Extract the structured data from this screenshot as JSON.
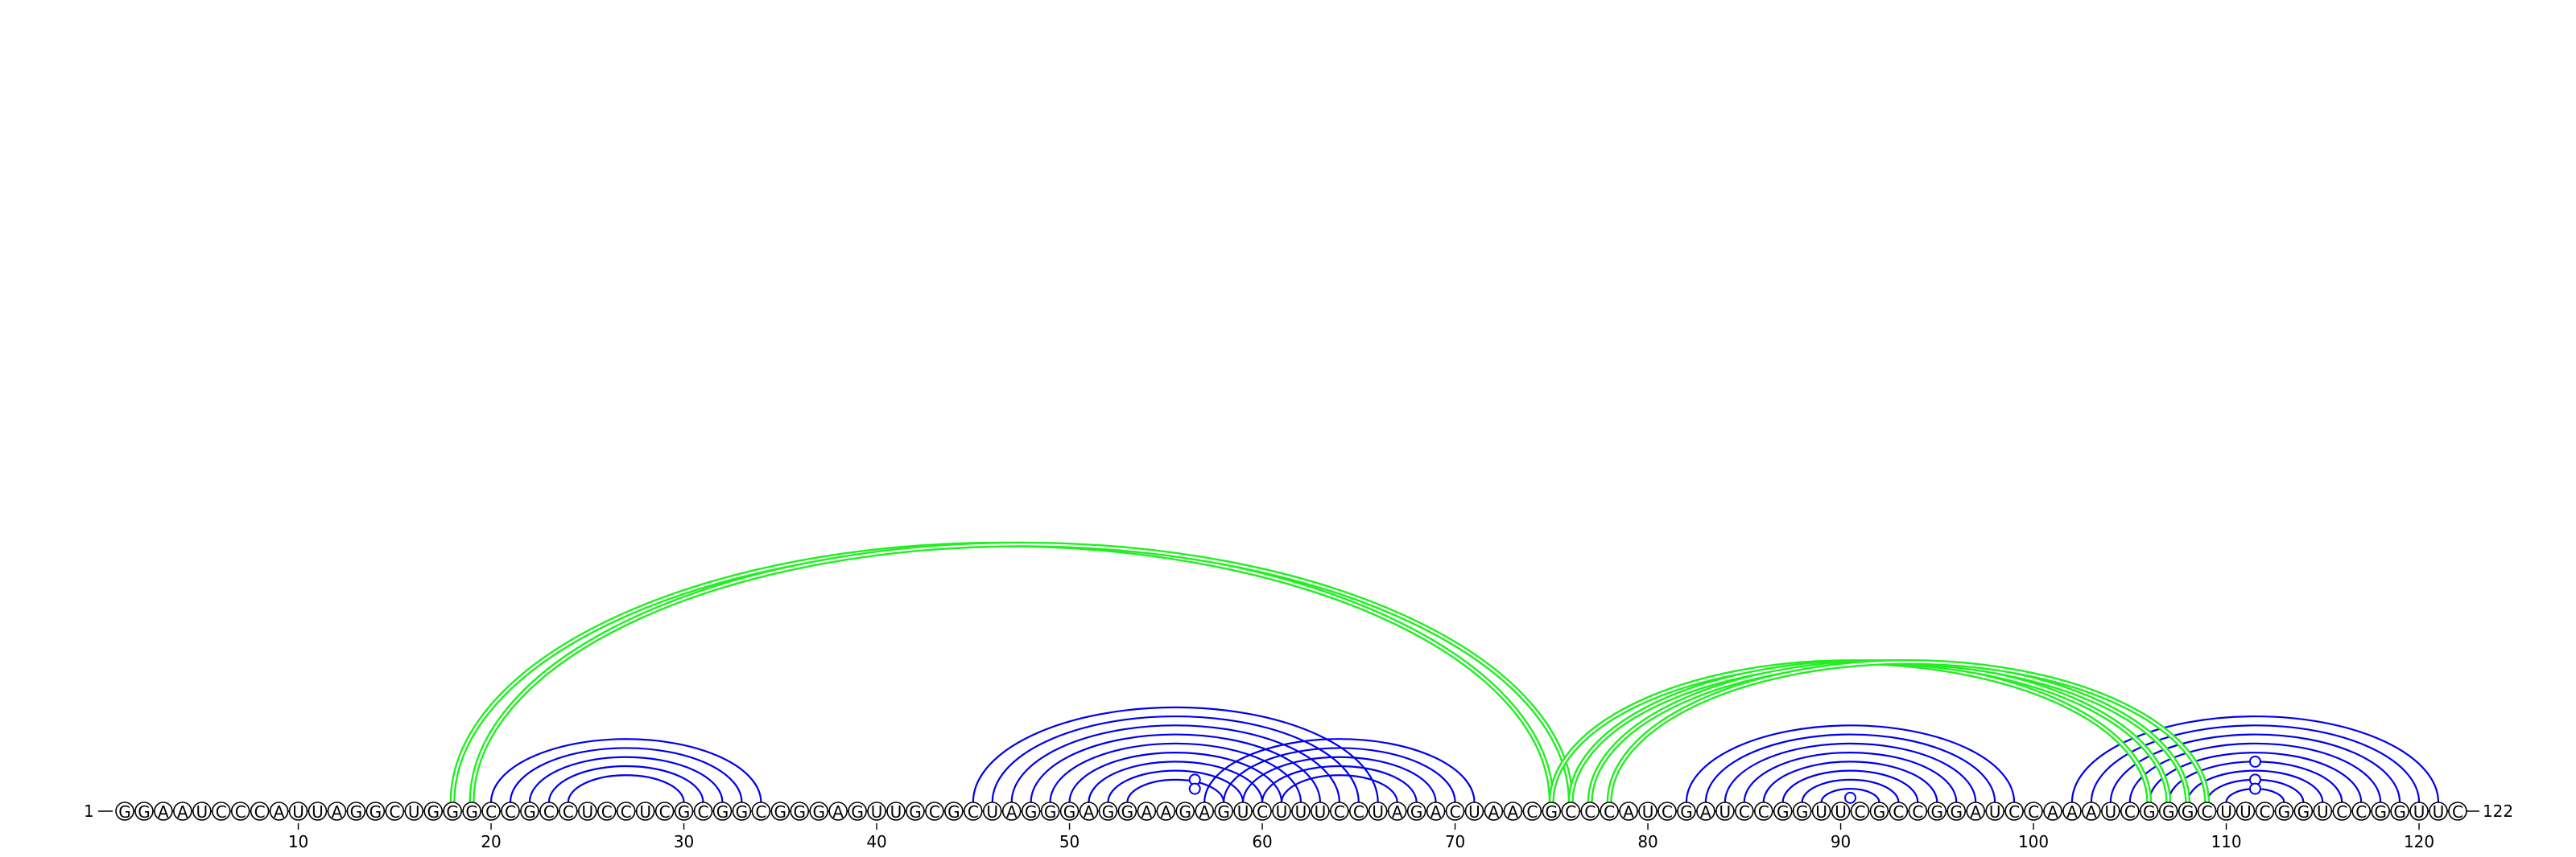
{
  "sequence": "GGAAUCCCAUUAGGCUGGGCCGCCUCCUCGCGGCGGGAGUUGCGCUAGGGAGGAAGAGUCUUUCCUAGACUAACGCCCAUCGAUCCGGUUCGCCGGAUCCAAAUCGGGCUUCGGUCCGGUUC",
  "start_label": "1",
  "end_label": "122",
  "ticks": [
    {
      "pos": 10,
      "label": "10"
    },
    {
      "pos": 20,
      "label": "20"
    },
    {
      "pos": 30,
      "label": "30"
    },
    {
      "pos": 40,
      "label": "40"
    },
    {
      "pos": 50,
      "label": "50"
    },
    {
      "pos": 60,
      "label": "60"
    },
    {
      "pos": 70,
      "label": "70"
    },
    {
      "pos": 80,
      "label": "80"
    },
    {
      "pos": 90,
      "label": "90"
    },
    {
      "pos": 100,
      "label": "100"
    },
    {
      "pos": 110,
      "label": "110"
    },
    {
      "pos": 120,
      "label": "120"
    }
  ],
  "colors": {
    "secondary": "#0000ee",
    "pseudoknot": "#22ee22"
  },
  "helices": [
    {
      "type": "secondary",
      "pairs": [
        [
          20,
          34
        ],
        [
          21,
          33
        ],
        [
          22,
          32
        ],
        [
          23,
          31
        ],
        [
          24,
          30
        ]
      ]
    },
    {
      "type": "secondary",
      "pairs": [
        [
          45,
          66
        ],
        [
          46,
          65
        ],
        [
          47,
          64
        ],
        [
          48,
          63
        ],
        [
          49,
          62
        ],
        [
          50,
          61
        ],
        [
          51,
          60
        ],
        [
          52,
          59
        ],
        [
          53,
          58
        ]
      ]
    },
    {
      "type": "secondary",
      "pairs": [
        [
          57,
          71
        ],
        [
          58,
          70
        ],
        [
          59,
          69
        ],
        [
          60,
          68
        ],
        [
          61,
          67
        ]
      ]
    },
    {
      "type": "secondary",
      "pairs": [
        [
          82,
          99
        ],
        [
          83,
          98
        ],
        [
          84,
          97
        ],
        [
          85,
          96
        ],
        [
          86,
          95
        ],
        [
          87,
          94
        ],
        [
          88,
          93
        ],
        [
          89,
          92
        ]
      ]
    },
    {
      "type": "secondary",
      "pairs": [
        [
          102,
          121
        ],
        [
          103,
          120
        ],
        [
          104,
          119
        ],
        [
          105,
          118
        ],
        [
          106,
          117
        ],
        [
          107,
          116
        ],
        [
          108,
          115
        ],
        [
          109,
          114
        ],
        [
          110,
          113
        ]
      ]
    },
    {
      "type": "pseudoknot",
      "pairs": [
        [
          18,
          75
        ],
        [
          19,
          76
        ]
      ]
    },
    {
      "type": "pseudoknot",
      "pairs": [
        [
          75,
          106
        ],
        [
          76,
          107
        ],
        [
          77,
          108
        ],
        [
          78,
          109
        ]
      ]
    }
  ],
  "noncanonical_markers": [
    {
      "pair": [
        54,
        59
      ]
    },
    {
      "pair": [
        55,
        58
      ]
    },
    {
      "pair": [
        90,
        91
      ]
    },
    {
      "pair": [
        107,
        116
      ]
    },
    {
      "pair": [
        109,
        114
      ]
    },
    {
      "pair": [
        110,
        113
      ]
    }
  ]
}
